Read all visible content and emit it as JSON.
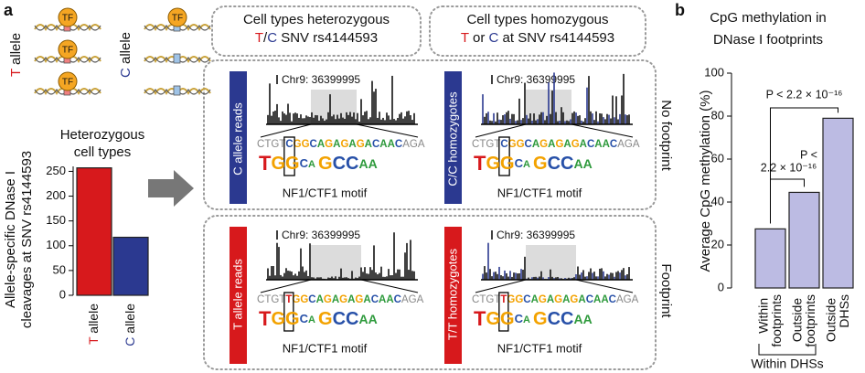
{
  "panel_a": {
    "label": "a",
    "cartoon": {
      "tf": "TF",
      "alleles": [
        "T allele",
        "C allele"
      ]
    },
    "headers": [
      [
        "Cell types heterozygous",
        "T/C SNV rs4144593"
      ],
      [
        "Cell types homozygous",
        "T or C at SNV rs4144593"
      ]
    ],
    "rows": [
      "No footprint",
      "Footprint"
    ],
    "panels": [
      {
        "label": "C allele reads",
        "color": "#2b3990",
        "sequence": "CTGTCGGCAGAGAGACAACAGA"
      },
      {
        "label": "C/C homozygotes",
        "color": "#2b3990",
        "sequence": "CTGTCGGCAGAGAGACAACAGA"
      },
      {
        "label": "T allele reads",
        "color": "#d7191c",
        "sequence": "CTGTTGGCAGAGAGACAACAGA"
      },
      {
        "label": "T/T homozygotes",
        "color": "#d7191c",
        "sequence": "CTGTTGGCAGAGAGACAACAGA"
      }
    ],
    "locus": "Chr9: 36399995",
    "motif_logo": [
      "TGGCA",
      "GCCAA"
    ],
    "motif": "NF1/CTF1 motif"
  },
  "chart_data": [
    {
      "type": "bar",
      "title": [
        "Heterozygous",
        "cell types"
      ],
      "ylabel": [
        "Allele-specific DNase I",
        "cleavages at SNV rs4144593"
      ],
      "categories": [
        "T allele",
        "C allele"
      ],
      "values": [
        257,
        117
      ],
      "colors": [
        "#d7191c",
        "#2b3990"
      ],
      "ylim": [
        0,
        260
      ],
      "yticks": [
        0,
        50,
        100,
        150,
        200,
        250
      ]
    },
    {
      "type": "bar",
      "label": "b",
      "title": [
        "CpG methylation in",
        "DNase I footprints"
      ],
      "ylabel": "Average CpG methylation (%)",
      "categories": [
        "Within footprints",
        "Outside footprints",
        "Outside DHSs"
      ],
      "values": [
        27.5,
        44.5,
        79
      ],
      "colors": [
        "#bcbbe3",
        "#bcbbe3",
        "#bcbbe3"
      ],
      "ylim": [
        0,
        100
      ],
      "yticks": [
        0,
        20,
        40,
        60,
        80,
        100
      ],
      "group_label": "Within DHSs",
      "annotations": [
        "P < 2.2 × 10⁻¹⁶",
        "P <",
        "2.2 × 10⁻¹⁶"
      ]
    }
  ]
}
